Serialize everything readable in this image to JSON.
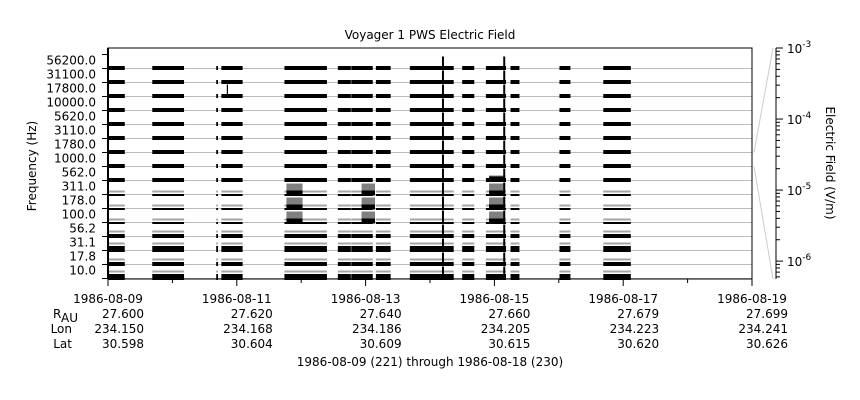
{
  "chart_data": {
    "type": "line",
    "title": "Voyager 1 PWS Electric Field",
    "ylabel": "Frequency (Hz)",
    "xlabel": "1986-08-09 (221) through 1986-08-18 (230)",
    "xlim": [
      "1986-08-09",
      "1986-08-19"
    ],
    "x_tick_labels": [
      "1986-08-09",
      "1986-08-11",
      "1986-08-13",
      "1986-08-15",
      "1986-08-17",
      "1986-08-19"
    ],
    "channels_hz": [
      "56200.0",
      "31100.0",
      "17800.0",
      "10000.0",
      "5620.0",
      "3110.0",
      "1780.0",
      "1000.0",
      "562.0",
      "311.0",
      "178.0",
      "100.0",
      "56.2",
      "31.1",
      "17.8",
      "10.0"
    ],
    "grid": true,
    "data_segments": [
      [
        "1986-08-09T00:00",
        "1986-08-09T06:15"
      ],
      [
        "1986-08-09T16:30",
        "1986-08-10T04:20"
      ],
      [
        "1986-08-10T16:20",
        "1986-08-10T17:00"
      ],
      [
        "1986-08-10T18:15",
        "1986-08-11T02:10"
      ],
      [
        "1986-08-11T17:45",
        "1986-08-12T09:35"
      ],
      [
        "1986-08-12T13:40",
        "1986-08-12T18:30"
      ],
      [
        "1986-08-12T18:40",
        "1986-08-13T02:40"
      ],
      [
        "1986-08-13T03:50",
        "1986-08-13T09:20"
      ],
      [
        "1986-08-13T16:30",
        "1986-08-14T08:50"
      ],
      [
        "1986-08-14T12:00",
        "1986-08-14T16:30"
      ],
      [
        "1986-08-14T20:50",
        "1986-08-15T04:20"
      ],
      [
        "1986-08-15T06:00",
        "1986-08-15T09:20"
      ],
      [
        "1986-08-16T00:15",
        "1986-08-16T04:20"
      ],
      [
        "1986-08-16T16:35",
        "1986-08-17T02:50"
      ]
    ],
    "enhancements": [
      {
        "start": "1986-08-11T18:30",
        "end": "1986-08-12T00:30",
        "channels": [
          "311.0",
          "178.0",
          "100.0"
        ]
      },
      {
        "start": "1986-08-12T22:30",
        "end": "1986-08-13T03:30",
        "channels": [
          "311.0",
          "178.0",
          "100.0"
        ]
      },
      {
        "start": "1986-08-14T22:00",
        "end": "1986-08-15T04:00",
        "channels": [
          "562.0",
          "311.0",
          "178.0",
          "100.0"
        ]
      }
    ],
    "spikes": [
      {
        "time": "1986-08-10T20:30",
        "channels": [
          "17800.0"
        ]
      },
      {
        "time": "1986-08-14T04:50",
        "channels": [
          "56200.0",
          "31100.0",
          "17800.0",
          "10000.0",
          "5620.0",
          "3110.0",
          "1780.0",
          "1000.0",
          "562.0",
          "311.0",
          "178.0",
          "100.0",
          "56.2",
          "31.1",
          "17.8",
          "10.0"
        ]
      },
      {
        "time": "1986-08-15T03:40",
        "channels": [
          "56200.0",
          "31100.0",
          "17800.0",
          "10000.0",
          "5620.0",
          "3110.0",
          "1780.0",
          "1000.0",
          "562.0",
          "311.0",
          "178.0",
          "100.0",
          "56.2",
          "31.1",
          "17.8",
          "10.0"
        ]
      }
    ],
    "colorbar": {
      "label": "Electric Field (V/m)",
      "scale": "log",
      "range": [
        5.6e-07,
        0.001
      ],
      "tick_labels": [
        {
          "base": "10",
          "exp": "-3",
          "value": 0.001
        },
        {
          "base": "10",
          "exp": "-4",
          "value": 0.0001
        },
        {
          "base": "10",
          "exp": "-5",
          "value": 1e-05
        },
        {
          "base": "10",
          "exp": "-6",
          "value": 1e-06
        }
      ]
    },
    "ephemeris": {
      "row_labels": {
        "r_main": "R",
        "r_sub": "AU",
        "lon": "Lon",
        "lat": "Lat"
      },
      "r_au": [
        "27.600",
        "27.620",
        "27.640",
        "27.660",
        "27.679",
        "27.699"
      ],
      "lon": [
        "234.150",
        "234.168",
        "234.186",
        "234.205",
        "234.223",
        "234.241"
      ],
      "lat": [
        "30.598",
        "30.604",
        "30.609",
        "30.615",
        "30.620",
        "30.626"
      ]
    }
  },
  "colors": {
    "trace": "#000000",
    "enhancement": "#808080",
    "gridline": "#bbbbbb",
    "fan": "#cccccc"
  }
}
